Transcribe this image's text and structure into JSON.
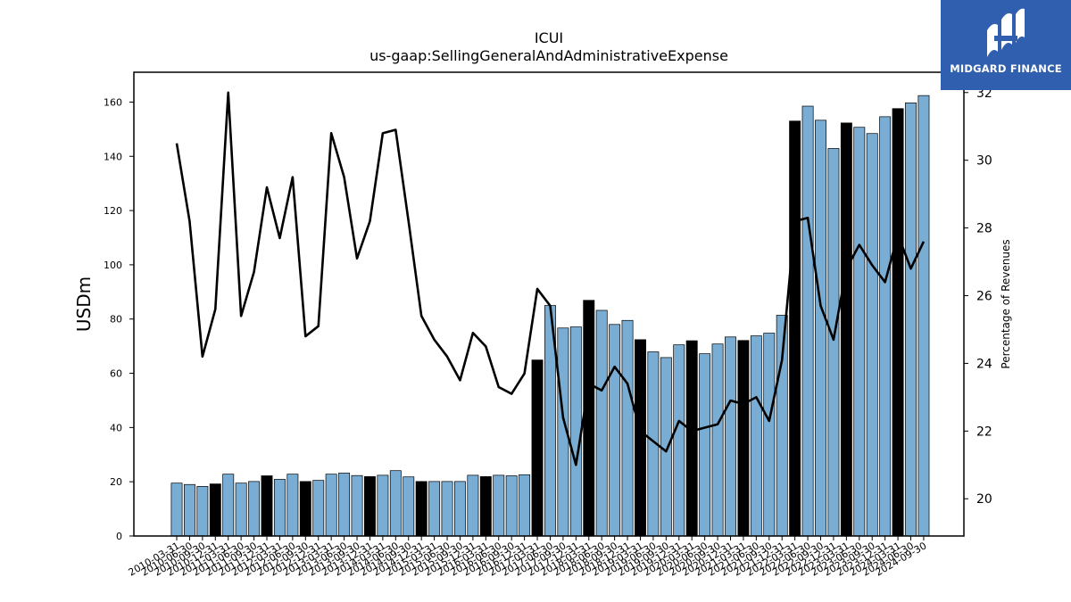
{
  "logo": {
    "text": "MIDGARD FINANCE",
    "icon": "midgard-logo-icon",
    "background": "#2f5fae"
  },
  "chart_data": {
    "type": "bar",
    "title": "ICUI",
    "subtitle": "us-gaap:SellingGeneralAndAdministrativeExpense",
    "ylabel": "USDm",
    "y2label": "Percentage of Revenues",
    "ylim": [
      0,
      171
    ],
    "y2lim": [
      18.9,
      32.6
    ],
    "yticks": [
      0,
      20,
      40,
      60,
      80,
      100,
      120,
      140,
      160
    ],
    "y2ticks": [
      20,
      22,
      24,
      26,
      28,
      30,
      32
    ],
    "grid": false,
    "bar_color": "#7aadd4",
    "highlight_color": "#000000",
    "line_color": "#000000",
    "categories": [
      "2010-03-31",
      "2010-06-30",
      "2010-09-30",
      "2010-12-31",
      "2011-03-31",
      "2011-06-30",
      "2011-09-30",
      "2011-12-31",
      "2012-03-31",
      "2012-06-30",
      "2012-09-30",
      "2012-12-31",
      "2013-03-31",
      "2013-06-30",
      "2013-09-30",
      "2013-12-31",
      "2014-03-31",
      "2014-06-30",
      "2014-09-30",
      "2014-12-31",
      "2015-03-31",
      "2015-06-30",
      "2015-09-30",
      "2015-12-31",
      "2016-03-31",
      "2016-06-30",
      "2016-09-30",
      "2016-12-31",
      "2017-03-31",
      "2017-06-30",
      "2017-09-30",
      "2017-12-31",
      "2018-03-31",
      "2018-06-30",
      "2018-09-30",
      "2018-12-31",
      "2019-03-31",
      "2019-06-30",
      "2019-09-30",
      "2019-12-31",
      "2020-03-31",
      "2020-06-30",
      "2020-09-30",
      "2020-12-31",
      "2021-03-31",
      "2021-06-30",
      "2021-09-30",
      "2021-12-31",
      "2022-03-31",
      "2022-06-30",
      "2022-09-30",
      "2022-12-31",
      "2023-03-31",
      "2023-06-30",
      "2023-09-30",
      "2023-12-31",
      "2024-03-31",
      "2024-06-30",
      "2024-09-30"
    ],
    "series": [
      {
        "type": "bar",
        "axis": "left",
        "values": [
          19.5,
          19.0,
          18.3,
          19.2,
          22.8,
          19.5,
          20.1,
          22.2,
          20.9,
          22.8,
          20.1,
          20.5,
          22.8,
          23.2,
          22.3,
          21.9,
          22.4,
          24.1,
          21.8,
          20.1,
          20.1,
          20.1,
          20.1,
          22.4,
          21.9,
          22.4,
          22.2,
          22.6,
          64.9,
          85.0,
          76.7,
          77.1,
          86.9,
          83.2,
          78.0,
          79.5,
          72.4,
          67.9,
          65.8,
          70.5,
          72.0,
          67.2,
          70.8,
          73.4,
          72.1,
          73.8,
          74.8,
          81.4,
          153.0,
          158.5,
          153.3,
          142.9,
          152.3,
          150.7,
          148.4,
          154.6,
          157.6,
          159.7,
          162.4
        ],
        "highlighted": [
          3,
          7,
          10,
          15,
          19,
          24,
          28,
          32,
          36,
          40,
          44,
          48,
          52,
          56
        ]
      },
      {
        "type": "line",
        "axis": "right",
        "values": [
          30.5,
          28.2,
          24.2,
          25.6,
          32.0,
          25.4,
          26.7,
          29.2,
          27.7,
          29.5,
          24.8,
          25.1,
          30.8,
          29.5,
          27.1,
          28.2,
          30.8,
          30.9,
          28.2,
          25.4,
          24.7,
          24.2,
          23.5,
          24.9,
          24.5,
          23.3,
          23.1,
          23.7,
          26.2,
          25.7,
          22.4,
          21.0,
          23.4,
          23.2,
          23.9,
          23.4,
          22.0,
          21.7,
          21.4,
          22.3,
          22.0,
          22.1,
          22.2,
          22.9,
          22.8,
          23.0,
          22.3,
          24.1,
          28.2,
          28.3,
          25.7,
          24.7,
          26.8,
          27.5,
          26.9,
          26.4,
          27.8,
          26.8,
          27.6
        ]
      }
    ]
  }
}
